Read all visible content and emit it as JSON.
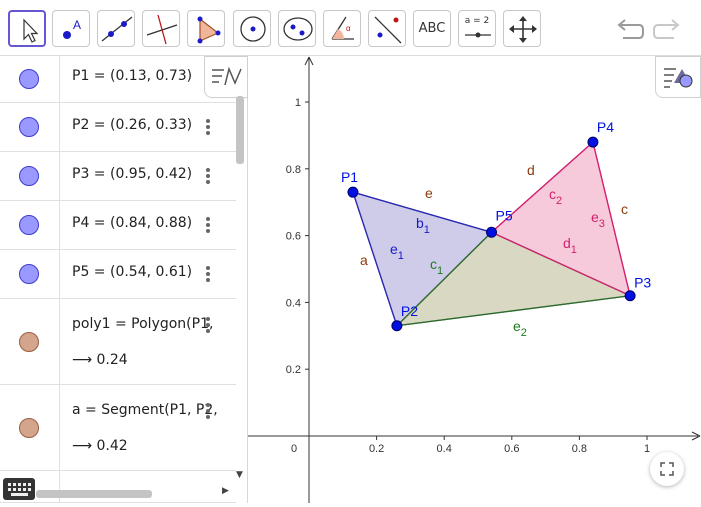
{
  "toolbar": {
    "tools": [
      {
        "name": "move-tool",
        "icon": "cursor-arrow-icon",
        "active": true
      },
      {
        "name": "point-tool",
        "icon": "point-icon",
        "label": "A"
      },
      {
        "name": "line-tool",
        "icon": "line-icon"
      },
      {
        "name": "perpendicular-line-tool",
        "icon": "perpendicular-line-icon"
      },
      {
        "name": "polygon-tool",
        "icon": "polygon-icon"
      },
      {
        "name": "circle-center-point-tool",
        "icon": "circle-icon"
      },
      {
        "name": "ellipse-tool",
        "icon": "ellipse-icon"
      },
      {
        "name": "angle-tool",
        "icon": "angle-icon"
      },
      {
        "name": "reflect-tool",
        "icon": "reflect-icon"
      },
      {
        "name": "text-tool",
        "icon": "text-icon",
        "label": "ABC"
      },
      {
        "name": "slider-tool",
        "icon": "slider-icon",
        "label": "a = 2"
      },
      {
        "name": "move-graphics-view-tool",
        "icon": "move-view-icon"
      }
    ],
    "undo_icon": "undo-icon",
    "redo_icon": "redo-icon"
  },
  "algebra": {
    "rows": [
      {
        "kind": "point",
        "expr": "P1 = (0.13, 0.73)"
      },
      {
        "kind": "point",
        "expr": "P2 = (0.26, 0.33)"
      },
      {
        "kind": "point",
        "expr": "P3 = (0.95, 0.42)"
      },
      {
        "kind": "point",
        "expr": "P4 = (0.84, 0.88)"
      },
      {
        "kind": "point",
        "expr": "P5 = (0.54, 0.61)"
      },
      {
        "kind": "poly",
        "expr": "poly1 = Polygon(P1,",
        "value": "⟶ 0.24"
      },
      {
        "kind": "poly",
        "expr": "a = Segment(P1, P2,",
        "value": "⟶ 0.42"
      }
    ]
  },
  "graph": {
    "x_ticks": [
      "0",
      "0.2",
      "0.4",
      "0.6",
      "0.8",
      "1"
    ],
    "y_ticks": [
      "0.2",
      "0.4",
      "0.6",
      "0.8",
      "1"
    ],
    "points": [
      {
        "label": "P1",
        "x": 0.13,
        "y": 0.73
      },
      {
        "label": "P2",
        "x": 0.26,
        "y": 0.33
      },
      {
        "label": "P3",
        "x": 0.95,
        "y": 0.42
      },
      {
        "label": "P4",
        "x": 0.84,
        "y": 0.88
      },
      {
        "label": "P5",
        "x": 0.54,
        "y": 0.61
      }
    ],
    "segment_labels": {
      "a": "a",
      "b": "b",
      "b_sub": "1",
      "c": "c",
      "c1": "c",
      "c1_sub": "1",
      "c2": "c",
      "c2_sub": "2",
      "d": "d",
      "d1": "d",
      "d1_sub": "1",
      "e": "e",
      "e1": "e",
      "e1_sub": "1",
      "e2": "e",
      "e2_sub": "2",
      "e3": "e",
      "e3_sub": "3"
    },
    "colors": {
      "blue_poly_fill": "#c7c3e6",
      "blue_poly_stroke": "#2a2ab0",
      "pink_poly_fill": "#f5c4d6",
      "pink_poly_stroke": "#d4206f",
      "olive_poly_fill": "#d6d6c0",
      "olive_poly_stroke": "#2f6b2f",
      "point_color": "#0010e0",
      "brown_label": "#8b3a0f",
      "blue_label": "#1a1ac8",
      "pink_label": "#d4206f",
      "green_label": "#1f7a1f"
    }
  }
}
